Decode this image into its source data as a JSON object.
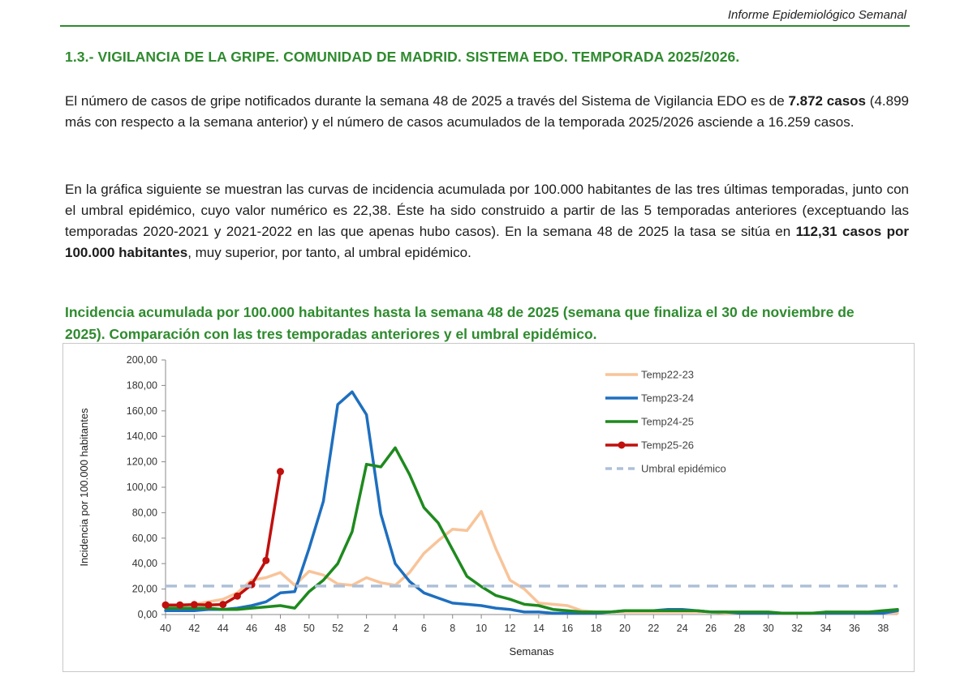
{
  "header": {
    "title": "Informe Epidemiológico Semanal"
  },
  "section": {
    "title": "1.3.- VIGILANCIA DE LA GRIPE. COMUNIDAD DE MADRID. SISTEMA EDO. TEMPORADA 2025/2026."
  },
  "paragraph1": {
    "part1": "El número de casos de gripe notificados durante la semana 48 de 2025 a través del Sistema de Vigilancia EDO es de ",
    "bold": "7.872 casos",
    "part2": " (4.899 más con respecto a la semana anterior) y el número de casos acumulados de la temporada 2025/2026 asciende a 16.259 casos."
  },
  "paragraph2": {
    "part1": "En la gráfica siguiente se muestran las curvas de incidencia acumulada por 100.000 habitantes de las tres últimas temporadas, junto con el umbral epidémico, cuyo valor numérico es 22,38. Éste ha sido construido a partir de las 5 temporadas anteriores (exceptuando las temporadas 2020-2021 y 2021-2022 en las que apenas hubo casos). En la semana 48 de 2025 la tasa se sitúa en ",
    "bold": "112,31 casos por 100.000 habitantes",
    "part2": ", muy superior, por tanto, al umbral epidémico."
  },
  "chart_caption": "Incidencia acumulada por 100.000 habitantes hasta la semana 48 de 2025 (semana que finaliza el 30 de noviembre de 2025). Comparación con las tres temporadas anteriores y el umbral epidémico.",
  "chart_data": {
    "type": "line",
    "xlabel": "Semanas",
    "ylabel": "Incidencia por 100.000 habitantes",
    "ylim": [
      0,
      200
    ],
    "y_ticks": [
      "0,00",
      "20,00",
      "40,00",
      "60,00",
      "80,00",
      "100,00",
      "120,00",
      "140,00",
      "160,00",
      "180,00",
      "200,00"
    ],
    "x_ticks": [
      "40",
      "42",
      "44",
      "46",
      "48",
      "50",
      "52",
      "2",
      "4",
      "6",
      "8",
      "10",
      "12",
      "14",
      "16",
      "18",
      "20",
      "22",
      "24",
      "26",
      "28",
      "30",
      "32",
      "34",
      "36",
      "38"
    ],
    "weeks": [
      "40",
      "41",
      "42",
      "43",
      "44",
      "45",
      "46",
      "47",
      "48",
      "49",
      "50",
      "51",
      "52",
      "1",
      "2",
      "3",
      "4",
      "5",
      "6",
      "7",
      "8",
      "9",
      "10",
      "11",
      "12",
      "13",
      "14",
      "15",
      "16",
      "17",
      "18",
      "19",
      "20",
      "21",
      "22",
      "23",
      "24",
      "25",
      "26",
      "27",
      "28",
      "29",
      "30",
      "31",
      "32",
      "33",
      "34",
      "35",
      "36",
      "37",
      "38",
      "39"
    ],
    "legend_position": "top-right",
    "series": [
      {
        "name": "Temp22-23",
        "color": "#f8c49a",
        "marker": false,
        "dashed": false,
        "values": [
          6,
          7,
          8,
          10,
          12,
          17,
          27,
          29,
          33,
          23,
          34,
          31,
          24,
          23,
          29,
          25,
          23,
          33,
          48,
          58,
          67,
          66,
          81,
          52,
          27,
          20,
          9,
          8,
          7,
          3,
          2,
          2,
          2,
          2,
          2,
          2,
          2,
          2,
          2,
          1,
          1,
          1,
          1,
          1,
          1,
          1,
          1,
          1,
          1,
          1,
          1,
          1
        ]
      },
      {
        "name": "Temp23-24",
        "color": "#1e6fbf",
        "marker": false,
        "dashed": false,
        "values": [
          3,
          3,
          3,
          4,
          4,
          5,
          7,
          10,
          17,
          18,
          52,
          89,
          165,
          175,
          157,
          79,
          40,
          26,
          17,
          13,
          9,
          8,
          7,
          5,
          4,
          2,
          2,
          1,
          1,
          1,
          1,
          2,
          3,
          3,
          3,
          4,
          4,
          3,
          2,
          2,
          1,
          1,
          1,
          1,
          1,
          1,
          1,
          1,
          1,
          1,
          1,
          3
        ]
      },
      {
        "name": "Temp24-25",
        "color": "#1e8a1e",
        "marker": false,
        "dashed": false,
        "values": [
          5,
          5,
          5,
          5,
          4,
          4,
          5,
          6,
          7,
          5,
          18,
          27,
          40,
          65,
          118,
          116,
          131,
          110,
          84,
          72,
          51,
          30,
          22,
          15,
          12,
          8,
          7,
          4,
          3,
          2,
          2,
          2,
          3,
          3,
          3,
          3,
          3,
          3,
          2,
          2,
          2,
          2,
          2,
          1,
          1,
          1,
          2,
          2,
          2,
          2,
          3,
          4
        ]
      },
      {
        "name": "Temp25-26",
        "color": "#c0100e",
        "marker": true,
        "dashed": false,
        "values": [
          7.5,
          7.5,
          7.8,
          7.5,
          7.9,
          14.5,
          23.5,
          42.5,
          112.31
        ]
      },
      {
        "name": "Umbral epidémico",
        "color": "#aec0d8",
        "marker": false,
        "dashed": true,
        "values": [
          22.38
        ]
      }
    ]
  }
}
